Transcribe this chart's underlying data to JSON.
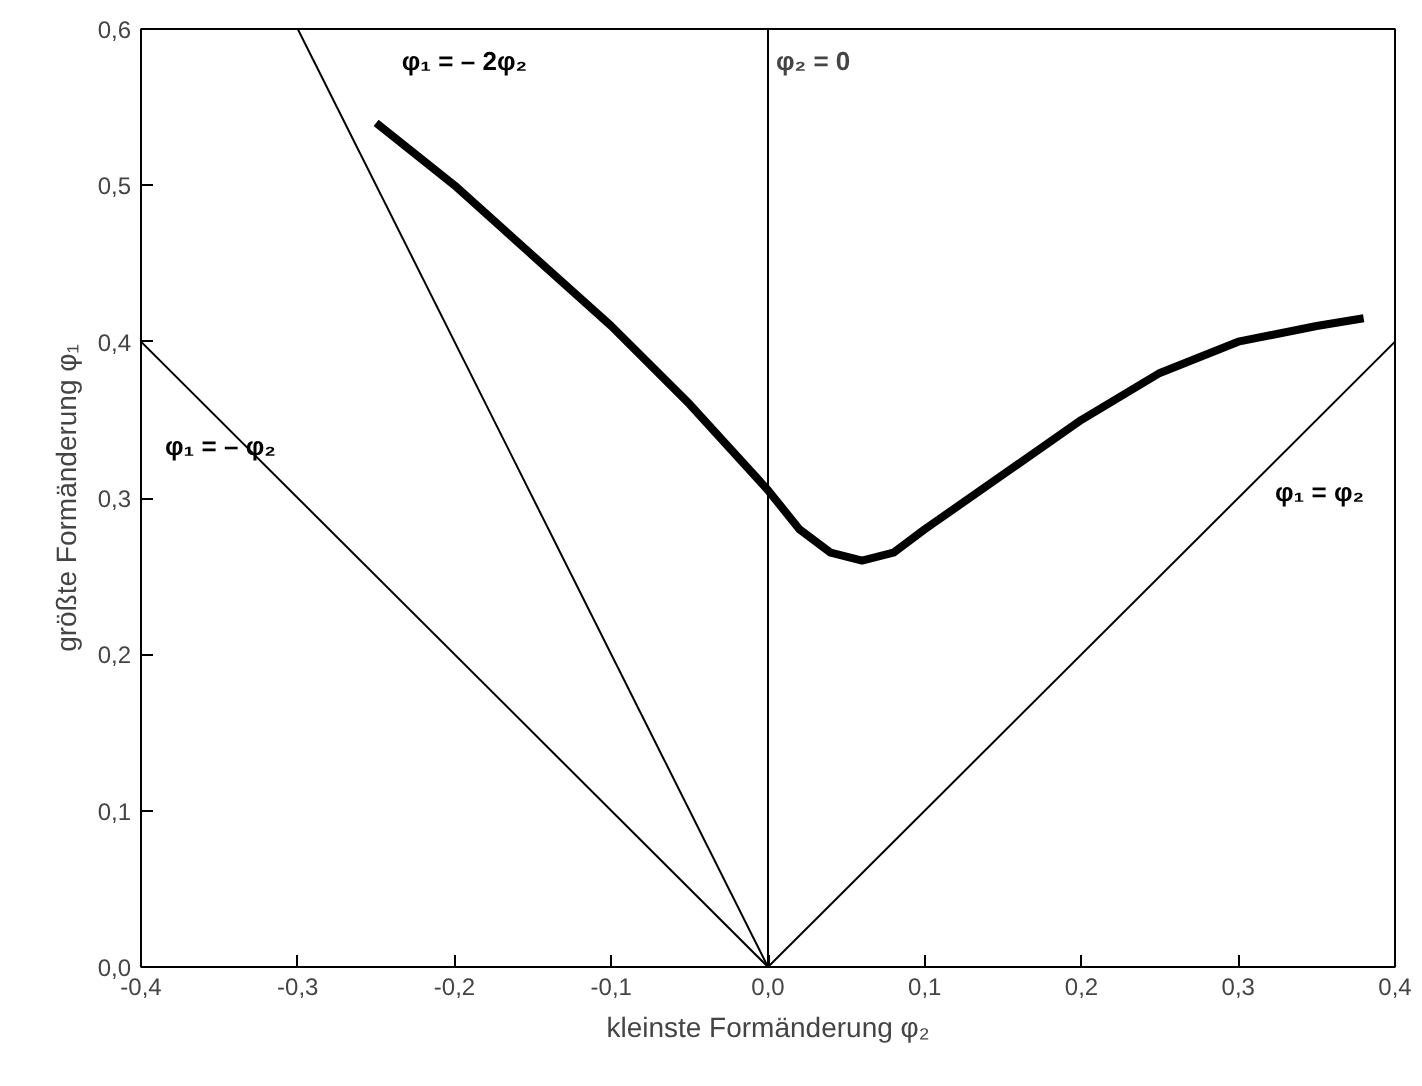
{
  "chart_data": {
    "type": "line",
    "xlabel": "kleinste Formänderung φ₂",
    "ylabel": "größte Formänderung φ₁",
    "xlim": [
      -0.4,
      0.4
    ],
    "ylim": [
      0,
      0.6
    ],
    "xticks": [
      {
        "value": -0.4,
        "label": "-0,4"
      },
      {
        "value": -0.3,
        "label": "-0,3"
      },
      {
        "value": -0.2,
        "label": "-0,2"
      },
      {
        "value": -0.1,
        "label": "-0,1"
      },
      {
        "value": 0,
        "label": "0,0"
      },
      {
        "value": 0.1,
        "label": "0,1"
      },
      {
        "value": 0.2,
        "label": "0,2"
      },
      {
        "value": 0.3,
        "label": "0,3"
      },
      {
        "value": 0.4,
        "label": "0,4"
      }
    ],
    "yticks": [
      {
        "value": 0,
        "label": "0,0"
      },
      {
        "value": 0.1,
        "label": "0,1"
      },
      {
        "value": 0.2,
        "label": "0,2"
      },
      {
        "value": 0.3,
        "label": "0,3"
      },
      {
        "value": 0.4,
        "label": "0,4"
      },
      {
        "value": 0.5,
        "label": "0,5"
      },
      {
        "value": 0.6,
        "label": "0,6"
      }
    ],
    "grid": false,
    "legend": false,
    "marker": "none",
    "line_style": "solid",
    "series": [
      {
        "color": "#000000",
        "x": [
          -0.25,
          -0.2,
          -0.15,
          -0.1,
          -0.05,
          0,
          0.02,
          0.04,
          0.06,
          0.08,
          0.1,
          0.15,
          0.2,
          0.25,
          0.3,
          0.35,
          0.38
        ],
        "values": [
          0.54,
          0.5,
          0.455,
          0.41,
          0.36,
          0.305,
          0.28,
          0.265,
          0.26,
          0.265,
          0.28,
          0.315,
          0.35,
          0.38,
          0.4,
          0.41,
          0.415
        ]
      },
      {
        "name": "φ₁ = – φ₂",
        "color": "#000000",
        "x": [
          -0.4,
          0
        ],
        "values": [
          0.4,
          0
        ]
      },
      {
        "name": "φ₁ = φ₂",
        "color": "#000000",
        "x": [
          0,
          0.4
        ],
        "values": [
          0,
          0.4
        ]
      },
      {
        "name": "φ₁ = – 2φ₂",
        "color": "#000000",
        "x": [
          -0.3,
          0
        ],
        "values": [
          0.6,
          0
        ]
      }
    ],
    "ref_lines": [
      {
        "axis": "x",
        "value": 0,
        "label": "φ₂ = 0",
        "color": "#000000",
        "line_style": "solid"
      }
    ]
  }
}
